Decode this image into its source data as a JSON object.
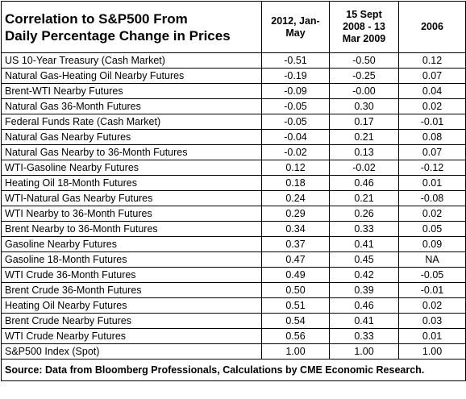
{
  "table": {
    "title_line1": "Correlation to S&P500 From",
    "title_line2": "Daily Percentage Change in Prices",
    "col1_line1": "2012, Jan-",
    "col1_line2": "May",
    "col2_line1": "15 Sept",
    "col2_line2": "2008 - 13",
    "col2_line3": "Mar 2009",
    "col3": "2006",
    "rows": [
      {
        "label": "US 10-Year Treasury (Cash Market)",
        "v2012": "-0.51",
        "v2008": "-0.50",
        "v2006": "0.12"
      },
      {
        "label": "Natural Gas-Heating Oil Nearby Futures",
        "v2012": "-0.19",
        "v2008": "-0.25",
        "v2006": "0.07"
      },
      {
        "label": "Brent-WTI Nearby Futures",
        "v2012": "-0.09",
        "v2008": "-0.00",
        "v2006": "0.04"
      },
      {
        "label": "Natural Gas 36-Month Futures",
        "v2012": "-0.05",
        "v2008": "0.30",
        "v2006": "0.02"
      },
      {
        "label": "Federal Funds Rate (Cash Market)",
        "v2012": "-0.05",
        "v2008": "0.17",
        "v2006": "-0.01"
      },
      {
        "label": "Natural Gas Nearby Futures",
        "v2012": "-0.04",
        "v2008": "0.21",
        "v2006": "0.08"
      },
      {
        "label": "Natural Gas Nearby to 36-Month Futures",
        "v2012": "-0.02",
        "v2008": "0.13",
        "v2006": "0.07"
      },
      {
        "label": "WTI-Gasoline Nearby Futures",
        "v2012": "0.12",
        "v2008": "-0.02",
        "v2006": "-0.12"
      },
      {
        "label": "Heating Oil 18-Month Futures",
        "v2012": "0.18",
        "v2008": "0.46",
        "v2006": "0.01"
      },
      {
        "label": "WTI-Natural Gas Nearby Futures",
        "v2012": "0.24",
        "v2008": "0.21",
        "v2006": "-0.08"
      },
      {
        "label": "WTI Nearby to 36-Month Futures",
        "v2012": "0.29",
        "v2008": "0.26",
        "v2006": "0.02"
      },
      {
        "label": "Brent Nearby to 36-Month Futures",
        "v2012": "0.34",
        "v2008": "0.33",
        "v2006": "0.05"
      },
      {
        "label": "Gasoline Nearby Futures",
        "v2012": "0.37",
        "v2008": "0.41",
        "v2006": "0.09"
      },
      {
        "label": "Gasoline 18-Month Futures",
        "v2012": "0.47",
        "v2008": "0.45",
        "v2006": "NA"
      },
      {
        "label": "WTI Crude 36-Month Futures",
        "v2012": "0.49",
        "v2008": "0.42",
        "v2006": "-0.05"
      },
      {
        "label": "Brent Crude 36-Month Futures",
        "v2012": "0.50",
        "v2008": "0.39",
        "v2006": "-0.01"
      },
      {
        "label": "Heating Oil Nearby Futures",
        "v2012": "0.51",
        "v2008": "0.46",
        "v2006": "0.02"
      },
      {
        "label": "Brent Crude Nearby Futures",
        "v2012": "0.54",
        "v2008": "0.41",
        "v2006": "0.03"
      },
      {
        "label": "WTI Crude Nearby Futures",
        "v2012": "0.56",
        "v2008": "0.33",
        "v2006": "0.01"
      },
      {
        "label": "S&P500 Index (Spot)",
        "v2012": "1.00",
        "v2008": "1.00",
        "v2006": "1.00"
      }
    ],
    "source": "Source:  Data from Bloomberg Professionals, Calculations by CME Economic Research."
  }
}
